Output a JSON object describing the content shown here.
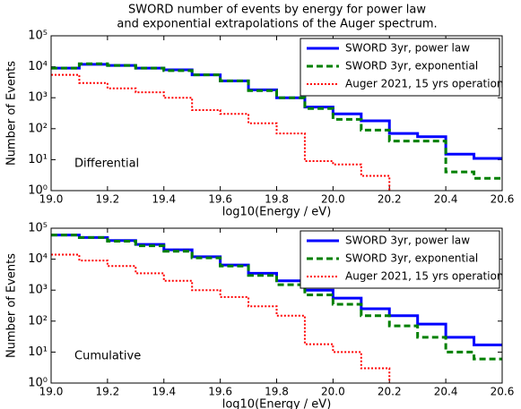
{
  "chart_data": [
    {
      "type": "histogram",
      "title": [
        "SWORD number of events by energy for power law",
        "and exponential extrapolations of the Auger spectrum."
      ],
      "xlabel": "log10(Energy / eV)",
      "ylabel": "Number of Events",
      "annotation": "Differential",
      "bins": [
        19.0,
        19.1,
        19.2,
        19.3,
        19.4,
        19.5,
        19.6,
        19.7,
        19.8,
        19.9,
        20.0,
        20.1,
        20.2,
        20.3,
        20.4,
        20.5,
        20.6
      ],
      "series": [
        {
          "name": "SWORD 3yr, power law",
          "color": "#0000ff",
          "style": "solid",
          "values": [
            9000,
            12000,
            11000,
            9000,
            8000,
            5500,
            3500,
            1800,
            1000,
            500,
            300,
            180,
            70,
            55,
            15,
            11
          ]
        },
        {
          "name": "SWORD 3yr, exponential",
          "color": "#008000",
          "style": "dashed",
          "values": [
            9000,
            12500,
            11000,
            9000,
            7500,
            5500,
            3500,
            1700,
            1000,
            450,
            200,
            90,
            40,
            40,
            4,
            2.5
          ]
        },
        {
          "name": "Auger 2021, 15 yrs operation",
          "color": "#ff0000",
          "style": "dotted",
          "values": [
            5500,
            3000,
            2000,
            1500,
            1000,
            400,
            300,
            150,
            70,
            9,
            7,
            3,
            null,
            null,
            null,
            null
          ]
        }
      ],
      "xlim": [
        19.0,
        20.6
      ],
      "xticks": [
        {
          "value": 19.0,
          "label": "19.0"
        },
        19.2,
        19.4,
        19.6,
        19.8,
        {
          "value": 20.0,
          "label": "20.0"
        },
        20.2,
        20.4,
        20.6
      ],
      "ylim": [
        1,
        100000
      ],
      "log_y": true,
      "yticks": [
        {
          "value": 1,
          "label": "10⁰"
        },
        {
          "value": 10,
          "label": "10¹"
        },
        {
          "value": 100,
          "label": "10²"
        },
        {
          "value": 1000,
          "label": "10³"
        },
        {
          "value": 10000,
          "label": "10⁴"
        },
        {
          "value": 100000,
          "label": "10⁵"
        }
      ],
      "legend": "upper right"
    },
    {
      "type": "histogram",
      "xlabel": "log10(Energy / eV)",
      "ylabel": "Number of Events",
      "annotation": "Cumulative",
      "bins": [
        19.0,
        19.1,
        19.2,
        19.3,
        19.4,
        19.5,
        19.6,
        19.7,
        19.8,
        19.9,
        20.0,
        20.1,
        20.2,
        20.3,
        20.4,
        20.5,
        20.6
      ],
      "series": [
        {
          "name": "SWORD 3yr, power law",
          "color": "#0000ff",
          "style": "solid",
          "values": [
            60000,
            50000,
            40000,
            30000,
            20000,
            12000,
            6500,
            3500,
            2000,
            1000,
            550,
            250,
            150,
            80,
            30,
            17
          ]
        },
        {
          "name": "SWORD 3yr, exponential",
          "color": "#008000",
          "style": "dashed",
          "values": [
            60000,
            50000,
            38000,
            27000,
            18000,
            11000,
            6000,
            3000,
            1500,
            700,
            350,
            150,
            70,
            30,
            10,
            6
          ]
        },
        {
          "name": "Auger 2021, 15 yrs operation",
          "color": "#ff0000",
          "style": "dotted",
          "values": [
            14000,
            9000,
            6000,
            3500,
            2000,
            1000,
            600,
            300,
            150,
            18,
            10,
            3,
            null,
            null,
            null,
            null
          ]
        }
      ],
      "xlim": [
        19.0,
        20.6
      ],
      "xticks": [
        {
          "value": 19.0,
          "label": "19.0"
        },
        19.2,
        19.4,
        19.6,
        19.8,
        {
          "value": 20.0,
          "label": "20.0"
        },
        20.2,
        20.4,
        20.6
      ],
      "ylim": [
        1,
        100000
      ],
      "log_y": true,
      "yticks": [
        {
          "value": 1,
          "label": "10⁰"
        },
        {
          "value": 10,
          "label": "10¹"
        },
        {
          "value": 100,
          "label": "10²"
        },
        {
          "value": 1000,
          "label": "10³"
        },
        {
          "value": 10000,
          "label": "10⁴"
        },
        {
          "value": 100000,
          "label": "10⁵"
        }
      ],
      "legend": "upper right"
    }
  ]
}
